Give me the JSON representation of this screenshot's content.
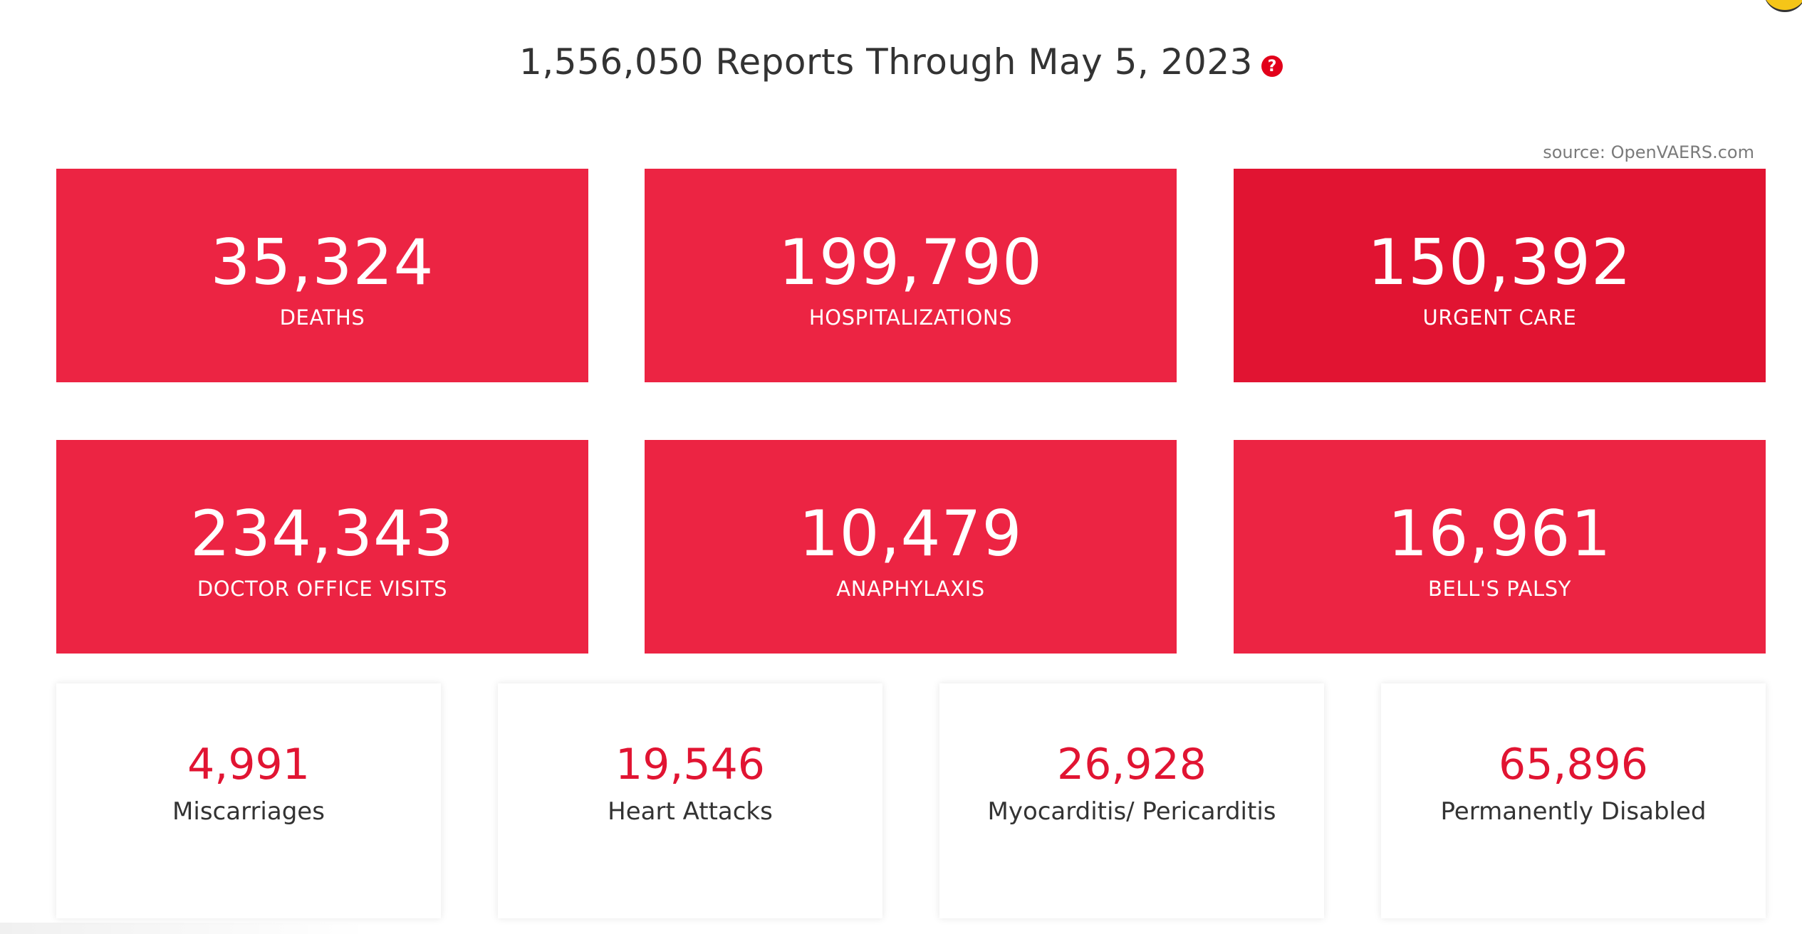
{
  "header": {
    "title": "1,556,050 Reports Through May 5, 2023",
    "help_symbol": "?"
  },
  "source_text": "source: OpenVAERS.com",
  "colors": {
    "accent_red": "#ec2443",
    "accent_red_dark": "#e11432",
    "text_dark": "#333333"
  },
  "primary_stats": [
    {
      "value": "35,324",
      "label": "DEATHS"
    },
    {
      "value": "199,790",
      "label": "HOSPITALIZATIONS"
    },
    {
      "value": "150,392",
      "label": "URGENT CARE"
    },
    {
      "value": "234,343",
      "label": "DOCTOR OFFICE VISITS"
    },
    {
      "value": "10,479",
      "label": "ANAPHYLAXIS"
    },
    {
      "value": "16,961",
      "label": "BELL'S PALSY"
    }
  ],
  "secondary_stats": [
    {
      "value": "4,991",
      "label": "Miscarriages"
    },
    {
      "value": "19,546",
      "label": "Heart Attacks"
    },
    {
      "value": "26,928",
      "label": "Myocarditis/ Pericarditis"
    },
    {
      "value": "65,896",
      "label": "Permanently Disabled"
    }
  ]
}
